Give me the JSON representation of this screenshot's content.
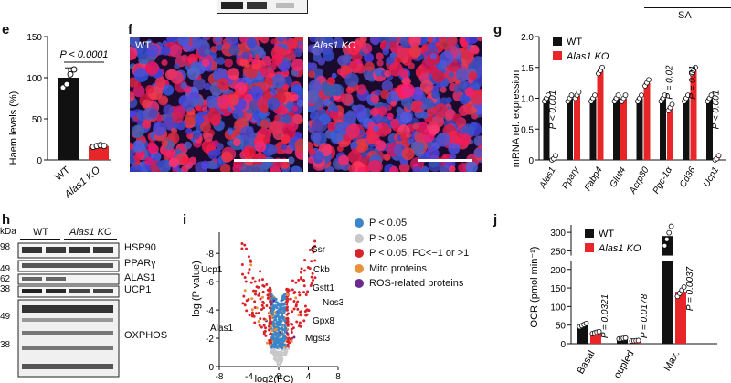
{
  "top": {
    "sa_label": "SA"
  },
  "panels": {
    "e": "e",
    "f": "f",
    "g": "g",
    "h": "h",
    "i": "i",
    "j": "j"
  },
  "panel_e": {
    "chart_data": {
      "type": "bar",
      "categories": [
        "WT",
        "Alas1 KO"
      ],
      "values": [
        100,
        17
      ],
      "errors": [
        12,
        1
      ],
      "points": [
        [
          88,
          92,
          104,
          110
        ],
        [
          16,
          17,
          18,
          17
        ]
      ],
      "colors": [
        "#111111",
        "#e8262a"
      ],
      "ylabel": "Haem levels (%)",
      "yticks": [
        0,
        50,
        100,
        150
      ],
      "ylim": [
        0,
        150
      ],
      "annotation": "P < 0.0001"
    }
  },
  "panel_f": {
    "labels": [
      "WT",
      "Alas1 KO"
    ]
  },
  "panel_g": {
    "chart_data": {
      "type": "bar",
      "ylabel": "mRNA rel. expression",
      "yticks": [
        0,
        0.5,
        1.0,
        1.5,
        2.0
      ],
      "yticks_labels": [
        "0",
        "0.5",
        "1.0",
        "1.5",
        "2.0"
      ],
      "ylim": [
        0,
        2.0
      ],
      "categories": [
        "Alas1",
        "Pparγ",
        "Fabp4",
        "Glut4",
        "Acrp30",
        "Pgc-1α",
        "Cd36",
        "Ucp1"
      ],
      "series": [
        {
          "name": "WT",
          "color": "#111111",
          "values": [
            1.0,
            1.0,
            1.0,
            1.0,
            1.0,
            1.0,
            1.0,
            1.0
          ]
        },
        {
          "name": "Alas1 KO",
          "color": "#e8262a",
          "values": [
            0.02,
            1.05,
            1.45,
            1.0,
            1.25,
            0.85,
            1.45,
            0.02
          ]
        }
      ],
      "pvalues": [
        "P < 0.001",
        "",
        "",
        "",
        "",
        "P = 0.02",
        "P = 0.01",
        "P < 0.001"
      ],
      "legend": [
        "WT",
        "Alas1 KO"
      ]
    }
  },
  "panel_h": {
    "kda_label": "kDa",
    "group_wt": "WT",
    "group_ko": "Alas1 KO",
    "kda_markers": [
      "98",
      "49",
      "62",
      "38",
      "49",
      "38"
    ],
    "proteins": [
      "HSP90",
      "PPARγ",
      "ALAS1",
      "UCP1",
      "OXPHOS"
    ]
  },
  "panel_i": {
    "chart_data": {
      "type": "scatter",
      "xlabel": "log2(FC)",
      "ylabel": "log (P value)",
      "xticks": [
        -8,
        -4,
        0,
        4,
        8
      ],
      "yticks": [
        -8,
        -6,
        -4,
        -2,
        0
      ],
      "xlim": [
        -8,
        8
      ],
      "ylim": [
        0,
        -9.5
      ]
    },
    "gene_labels": [
      "Gsr",
      "Ckb",
      "Gstt1",
      "Nos3",
      "Gpx8",
      "Mgst3",
      "Ucp1",
      "Alas1"
    ],
    "legend": [
      {
        "text": "P < 0.05",
        "color": "#3a86c8"
      },
      {
        "text": "P > 0.05",
        "color": "#c8c8c8"
      },
      {
        "text": "P < 0.05, FC<−1 or >1",
        "color": "#d8232a"
      },
      {
        "text": "Mito proteins",
        "color": "#e8923a"
      },
      {
        "text": "ROS-related proteins",
        "color": "#6a2c8c"
      }
    ]
  },
  "panel_j": {
    "chart_data": {
      "type": "bar",
      "ylabel": "OCR (pmol min⁻¹)",
      "yticks": [
        0,
        50,
        100,
        150,
        200,
        250,
        300
      ],
      "categories": [
        "Basal",
        "Uncoupled",
        "Max."
      ],
      "series": [
        {
          "name": "WT",
          "color": "#111111",
          "values": [
            50,
            14,
            290
          ]
        },
        {
          "name": "Alas1 KO",
          "color": "#e8262a",
          "values": [
            30,
            8,
            140
          ]
        }
      ],
      "pvalues": [
        "P = 0.0321",
        "P = 0.0178",
        "P = 0.0037"
      ],
      "legend": [
        "WT",
        "Alas1 KO"
      ],
      "category_labels_visible": [
        "Basal",
        "oupled",
        "Max."
      ]
    }
  }
}
